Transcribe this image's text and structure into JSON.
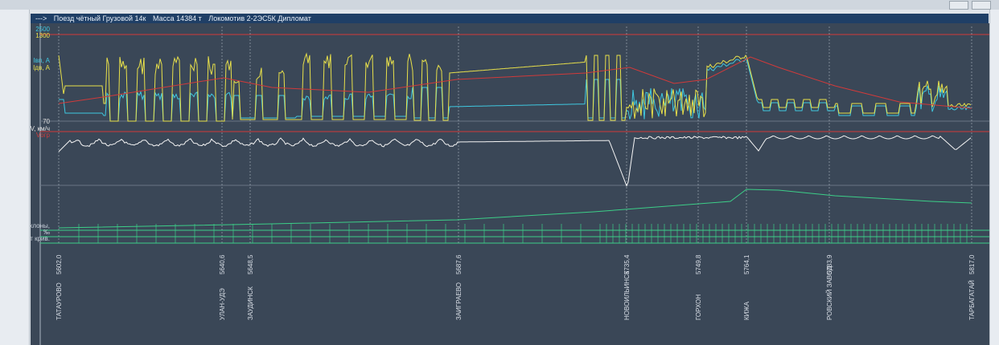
{
  "window": {
    "title_arrow": "--->",
    "title_segments": [
      "Поезд чётный Грузовой 14к",
      "Масса 14384 т",
      "Локомотив 2-2ЭС5К Дипломат"
    ]
  },
  "chart_data": {
    "type": "line",
    "scales": {
      "top_values": [
        "2500",
        "1300"
      ],
      "mid_value": "70"
    },
    "current_panel": {
      "legend": [
        "Iвп, А",
        "Iдв, А"
      ],
      "series": [
        {
          "name": "Iвп, А",
          "color": "#3fc8e0"
        },
        {
          "name": "Iдв, А",
          "color": "#e8e04a"
        }
      ]
    },
    "speed_panel": {
      "legend": [
        "V, км/ч",
        "Vогр"
      ],
      "series": [
        {
          "name": "V, км/ч",
          "color": "#f4f4f4"
        },
        {
          "name": "Vогр",
          "color": "#d23a3a"
        }
      ]
    },
    "profile_panel": {
      "labels": [
        "Уклоны,",
        "‰",
        "От крив."
      ],
      "series_color": "#3ccf88"
    },
    "x_labels": [
      "5602,0",
      "5640,6",
      "5648,5",
      "5687,6",
      "5735,4",
      "5749,8",
      "5764,1",
      "5783,9",
      "5817,0"
    ],
    "stations": [
      "ТАТАУРОВО",
      "УЛАН-УДЭ",
      "ЗАУДИНСК",
      "ЗАИГРАЕВО",
      "НОВОИЛЬИНСК",
      "ГОРХОН",
      "КИЖА",
      "РОВСКИЙ ЗАВОД",
      "ТАРБАГАТАЙ"
    ]
  },
  "colors": {
    "background": "#3a4757",
    "grid": "#6a7686",
    "limit": "#d23a3a"
  }
}
